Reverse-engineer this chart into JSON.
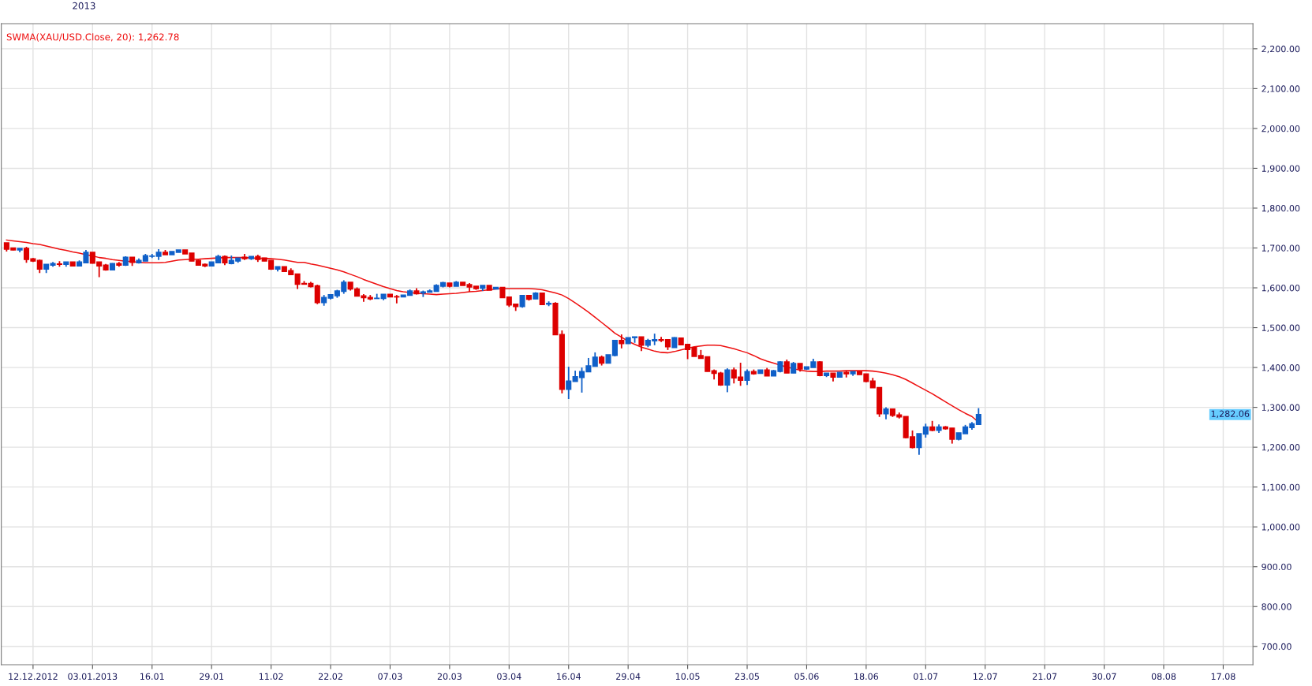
{
  "chart_data": {
    "type": "candlestick",
    "categories": [
      null,
      null,
      null,
      null,
      "12.12.2012",
      null,
      null,
      null,
      null,
      null,
      null,
      null,
      null,
      "03.01.2013",
      null,
      null,
      null,
      null,
      null,
      null,
      null,
      null,
      "16.01",
      null,
      null,
      null,
      null,
      null,
      null,
      null,
      null,
      "29.01",
      null,
      null,
      null,
      null,
      null,
      null,
      null,
      null,
      "11.02",
      null,
      null,
      null,
      null,
      null,
      null,
      null,
      null,
      "22.02",
      null,
      null,
      null,
      null,
      null,
      null,
      null,
      null,
      "07.03",
      null,
      null,
      null,
      null,
      null,
      null,
      null,
      null,
      "20.03",
      null,
      null,
      null,
      null,
      null,
      null,
      null,
      null,
      "03.04",
      null,
      null,
      null,
      null,
      null,
      null,
      null,
      null,
      "16.04",
      null,
      null,
      null,
      null,
      null,
      null,
      null,
      null,
      "29.04",
      null,
      null,
      null,
      null,
      null,
      null,
      null,
      null,
      "10.05",
      null,
      null,
      null,
      null,
      null,
      null,
      null,
      null,
      "23.05",
      null,
      null,
      null,
      null,
      null,
      null,
      null,
      null,
      "05.06",
      null,
      null,
      null,
      null,
      null,
      null,
      null,
      null,
      "18.06",
      null,
      null,
      null,
      null,
      null,
      null,
      null,
      null,
      "01.07",
      null,
      null,
      null,
      null,
      null,
      null,
      null,
      null,
      "12.07",
      null,
      null,
      null,
      null,
      null,
      null,
      null,
      null,
      "21.07",
      null,
      null,
      null,
      null,
      null,
      null,
      null,
      null,
      "30.07",
      null,
      null,
      null,
      null,
      null,
      null,
      null,
      null,
      "08.08",
      null,
      null,
      null,
      null,
      null,
      null,
      null,
      null,
      "17.08",
      null,
      null,
      null,
      null
    ],
    "ohlc": [
      [
        1713,
        1713,
        1691,
        1697
      ],
      [
        1700,
        1701,
        1694,
        1695
      ],
      [
        1695,
        1699,
        1689,
        1699
      ],
      [
        1699,
        1703,
        1663,
        1671
      ],
      [
        1673,
        1675,
        1665,
        1667
      ],
      [
        1669,
        1671,
        1637,
        1647
      ],
      [
        1647,
        1659,
        1637,
        1659
      ],
      [
        1657,
        1665,
        1653,
        1661
      ],
      [
        1660,
        1667,
        1653,
        1659
      ],
      [
        1659,
        1665,
        1653,
        1665
      ],
      [
        1665,
        1665,
        1655,
        1655
      ],
      [
        1655,
        1669,
        1655,
        1665
      ],
      [
        1663,
        1695,
        1663,
        1689
      ],
      [
        1689,
        1689,
        1661,
        1662
      ],
      [
        1665,
        1665,
        1627,
        1655
      ],
      [
        1657,
        1660,
        1643,
        1645
      ],
      [
        1645,
        1662,
        1645,
        1661
      ],
      [
        1661,
        1665,
        1653,
        1657
      ],
      [
        1657,
        1679,
        1655,
        1677
      ],
      [
        1677,
        1677,
        1655,
        1664
      ],
      [
        1663,
        1674,
        1661,
        1669
      ],
      [
        1667,
        1685,
        1667,
        1681
      ],
      [
        1679,
        1685,
        1675,
        1680
      ],
      [
        1679,
        1697,
        1670,
        1689
      ],
      [
        1689,
        1695,
        1683,
        1683
      ],
      [
        1683,
        1691,
        1683,
        1691
      ],
      [
        1689,
        1695,
        1689,
        1695
      ],
      [
        1695,
        1695,
        1685,
        1685
      ],
      [
        1687,
        1687,
        1667,
        1667
      ],
      [
        1669,
        1671,
        1657,
        1657
      ],
      [
        1659,
        1661,
        1652,
        1655
      ],
      [
        1655,
        1665,
        1655,
        1665
      ],
      [
        1663,
        1683,
        1663,
        1679
      ],
      [
        1679,
        1681,
        1657,
        1663
      ],
      [
        1661,
        1681,
        1659,
        1669
      ],
      [
        1667,
        1675,
        1663,
        1675
      ],
      [
        1677,
        1685,
        1670,
        1673
      ],
      [
        1673,
        1679,
        1670,
        1679
      ],
      [
        1679,
        1683,
        1665,
        1671
      ],
      [
        1675,
        1675,
        1667,
        1667
      ],
      [
        1669,
        1669,
        1645,
        1647
      ],
      [
        1647,
        1653,
        1641,
        1653
      ],
      [
        1653,
        1653,
        1641,
        1641
      ],
      [
        1643,
        1649,
        1633,
        1633
      ],
      [
        1635,
        1635,
        1597,
        1609
      ],
      [
        1611,
        1617,
        1609,
        1609
      ],
      [
        1611,
        1615,
        1601,
        1603
      ],
      [
        1605,
        1608,
        1559,
        1563
      ],
      [
        1563,
        1582,
        1555,
        1576
      ],
      [
        1574,
        1583,
        1571,
        1583
      ],
      [
        1580,
        1595,
        1575,
        1592
      ],
      [
        1591,
        1619,
        1585,
        1614
      ],
      [
        1614,
        1614,
        1593,
        1597
      ],
      [
        1597,
        1601,
        1579,
        1579
      ],
      [
        1580,
        1584,
        1565,
        1575
      ],
      [
        1576,
        1582,
        1569,
        1572
      ],
      [
        1573,
        1585,
        1573,
        1574
      ],
      [
        1573,
        1584,
        1569,
        1584
      ],
      [
        1584,
        1584,
        1577,
        1577
      ],
      [
        1578,
        1582,
        1561,
        1577
      ],
      [
        1577,
        1582,
        1577,
        1582
      ],
      [
        1581,
        1596,
        1581,
        1592
      ],
      [
        1592,
        1599,
        1583,
        1585
      ],
      [
        1587,
        1593,
        1577,
        1590
      ],
      [
        1589,
        1596,
        1589,
        1592
      ],
      [
        1591,
        1609,
        1591,
        1606
      ],
      [
        1604,
        1615,
        1601,
        1613
      ],
      [
        1612,
        1612,
        1601,
        1604
      ],
      [
        1604,
        1617,
        1604,
        1614
      ],
      [
        1614,
        1614,
        1606,
        1606
      ],
      [
        1608,
        1612,
        1590,
        1602
      ],
      [
        1604,
        1604,
        1595,
        1598
      ],
      [
        1599,
        1606,
        1592,
        1606
      ],
      [
        1606,
        1606,
        1594,
        1594
      ],
      [
        1597,
        1601,
        1597,
        1601
      ],
      [
        1601,
        1602,
        1575,
        1575
      ],
      [
        1577,
        1577,
        1552,
        1557
      ],
      [
        1559,
        1559,
        1542,
        1553
      ],
      [
        1553,
        1581,
        1550,
        1581
      ],
      [
        1581,
        1581,
        1568,
        1571
      ],
      [
        1572,
        1589,
        1572,
        1587
      ],
      [
        1587,
        1587,
        1558,
        1558
      ],
      [
        1559,
        1566,
        1554,
        1561
      ],
      [
        1561,
        1564,
        1482,
        1482
      ],
      [
        1483,
        1493,
        1335,
        1345
      ],
      [
        1345,
        1402,
        1321,
        1366
      ],
      [
        1365,
        1392,
        1365,
        1377
      ],
      [
        1375,
        1400,
        1337,
        1390
      ],
      [
        1389,
        1424,
        1389,
        1404
      ],
      [
        1403,
        1438,
        1403,
        1426
      ],
      [
        1426,
        1430,
        1405,
        1411
      ],
      [
        1411,
        1432,
        1411,
        1432
      ],
      [
        1430,
        1468,
        1428,
        1468
      ],
      [
        1468,
        1483,
        1448,
        1460
      ],
      [
        1460,
        1475,
        1460,
        1475
      ],
      [
        1475,
        1477,
        1462,
        1477
      ],
      [
        1477,
        1477,
        1441,
        1456
      ],
      [
        1456,
        1472,
        1451,
        1468
      ],
      [
        1467,
        1485,
        1456,
        1470
      ],
      [
        1470,
        1477,
        1464,
        1468
      ],
      [
        1470,
        1470,
        1444,
        1452
      ],
      [
        1450,
        1476,
        1450,
        1475
      ],
      [
        1474,
        1475,
        1457,
        1457
      ],
      [
        1458,
        1458,
        1421,
        1445
      ],
      [
        1450,
        1450,
        1428,
        1428
      ],
      [
        1430,
        1444,
        1423,
        1423
      ],
      [
        1427,
        1427,
        1390,
        1390
      ],
      [
        1392,
        1395,
        1370,
        1385
      ],
      [
        1386,
        1389,
        1354,
        1356
      ],
      [
        1356,
        1398,
        1338,
        1394
      ],
      [
        1394,
        1400,
        1360,
        1374
      ],
      [
        1376,
        1412,
        1354,
        1368
      ],
      [
        1368,
        1395,
        1356,
        1390
      ],
      [
        1390,
        1395,
        1382,
        1384
      ],
      [
        1385,
        1394,
        1385,
        1394
      ],
      [
        1394,
        1399,
        1379,
        1379
      ],
      [
        1379,
        1394,
        1379,
        1392
      ],
      [
        1390,
        1416,
        1388,
        1414
      ],
      [
        1414,
        1420,
        1386,
        1386
      ],
      [
        1386,
        1414,
        1386,
        1410
      ],
      [
        1410,
        1410,
        1390,
        1396
      ],
      [
        1396,
        1402,
        1394,
        1402
      ],
      [
        1400,
        1422,
        1400,
        1414
      ],
      [
        1414,
        1416,
        1378,
        1380
      ],
      [
        1380,
        1386,
        1376,
        1386
      ],
      [
        1386,
        1386,
        1365,
        1376
      ],
      [
        1376,
        1388,
        1376,
        1388
      ],
      [
        1388,
        1392,
        1375,
        1384
      ],
      [
        1384,
        1390,
        1379,
        1390
      ],
      [
        1390,
        1390,
        1382,
        1382
      ],
      [
        1384,
        1384,
        1363,
        1365
      ],
      [
        1366,
        1374,
        1349,
        1349
      ],
      [
        1350,
        1350,
        1276,
        1284
      ],
      [
        1284,
        1300,
        1270,
        1296
      ],
      [
        1296,
        1296,
        1276,
        1280
      ],
      [
        1281,
        1287,
        1272,
        1276
      ],
      [
        1277,
        1277,
        1222,
        1224
      ],
      [
        1226,
        1242,
        1197,
        1199
      ],
      [
        1199,
        1234,
        1181,
        1234
      ],
      [
        1233,
        1259,
        1224,
        1251
      ],
      [
        1251,
        1266,
        1240,
        1242
      ],
      [
        1242,
        1257,
        1236,
        1251
      ],
      [
        1251,
        1253,
        1244,
        1246
      ],
      [
        1248,
        1248,
        1209,
        1220
      ],
      [
        1220,
        1236,
        1217,
        1236
      ],
      [
        1234,
        1256,
        1234,
        1251
      ],
      [
        1249,
        1263,
        1244,
        1259
      ],
      [
        1257,
        1298,
        1257,
        1282.06
      ],
      null,
      null,
      null,
      null,
      null,
      null,
      null,
      null,
      null,
      null,
      null,
      null,
      null,
      null,
      null,
      null,
      null,
      null,
      null,
      null,
      null,
      null,
      null,
      null,
      null,
      null,
      null,
      null,
      null,
      null,
      null,
      null,
      null,
      null,
      null,
      null,
      null,
      null,
      null,
      null,
      null
    ],
    "series": [
      {
        "type": "line",
        "color": "#ee1111",
        "values": [
          1720,
          1718,
          1716,
          1714,
          1711,
          1709,
          1705,
          1701,
          1697,
          1694,
          1690,
          1687,
          1683,
          1680,
          1676,
          1674,
          1671,
          1669,
          1667,
          1666,
          1664,
          1663,
          1663,
          1663,
          1664,
          1667,
          1670,
          1671,
          1672,
          1672,
          1673,
          1674,
          1675,
          1676,
          1676,
          1676,
          1676,
          1675,
          1674,
          1674,
          1673,
          1672,
          1670,
          1667,
          1664,
          1664,
          1660,
          1657,
          1653,
          1649,
          1645,
          1640,
          1634,
          1628,
          1621,
          1615,
          1609,
          1603,
          1598,
          1593,
          1590,
          1588,
          1586,
          1585,
          1584,
          1583,
          1584,
          1585,
          1586,
          1588,
          1590,
          1591,
          1593,
          1595,
          1597,
          1598,
          1598,
          1598,
          1598,
          1598,
          1597,
          1595,
          1591,
          1587,
          1582,
          1573,
          1562,
          1551,
          1539,
          1526,
          1513,
          1500,
          1486,
          1476,
          1466,
          1458,
          1451,
          1446,
          1441,
          1438,
          1437,
          1440,
          1444,
          1448,
          1452,
          1454,
          1456,
          1456,
          1455,
          1451,
          1447,
          1442,
          1437,
          1430,
          1422,
          1416,
          1411,
          1406,
          1401,
          1397,
          1393,
          1391,
          1390,
          1390,
          1391,
          1391,
          1391,
          1392,
          1392,
          1392,
          1392,
          1391,
          1389,
          1386,
          1382,
          1377,
          1370,
          1361,
          1352,
          1343,
          1334,
          1324,
          1314,
          1304,
          1294,
          1285,
          1277,
          1263,
          null,
          null,
          null,
          null,
          null,
          null,
          null,
          null,
          null,
          null,
          null,
          null,
          null,
          null,
          null,
          null,
          null,
          null,
          null,
          null,
          null,
          null,
          null,
          null,
          null,
          null,
          null,
          null,
          null,
          null,
          null,
          null,
          null,
          null,
          null,
          null,
          null,
          null,
          null,
          null,
          null
        ]
      }
    ],
    "ylim": [
      654,
      2263
    ],
    "yticks": [
      {
        "value": 700,
        "label": "700.00"
      },
      {
        "value": 800,
        "label": "800.00"
      },
      {
        "value": 900,
        "label": "900.00"
      },
      {
        "value": 1000,
        "label": "1,000.00"
      },
      {
        "value": 1100,
        "label": "1,100.00"
      },
      {
        "value": 1200,
        "label": "1,200.00"
      },
      {
        "value": 1300,
        "label": "1,300.00"
      },
      {
        "value": 1400,
        "label": "1,400.00"
      },
      {
        "value": 1500,
        "label": "1,500.00"
      },
      {
        "value": 1600,
        "label": "1,600.00"
      },
      {
        "value": 1700,
        "label": "1,700.00"
      },
      {
        "value": 1800,
        "label": "1,800.00"
      },
      {
        "value": 1900,
        "label": "1,900.00"
      },
      {
        "value": 2000,
        "label": "2,000.00"
      },
      {
        "value": 2100,
        "label": "2,100.00"
      },
      {
        "value": 2200,
        "label": "2,200.00"
      }
    ],
    "grid": true,
    "annotations": [
      "SWMA(XAU/USD.Close, 20): 1,262.78",
      "1,282.06",
      "2013"
    ]
  }
}
